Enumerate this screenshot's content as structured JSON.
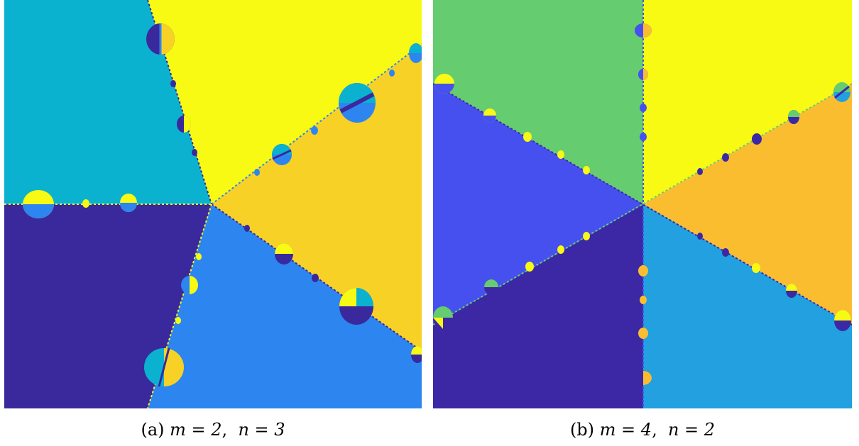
{
  "figure": {
    "panels": [
      {
        "tag": "(a)",
        "m_label": "m = 2",
        "n_label": "n = 3",
        "basin_colors": [
          "#0bb2cf",
          "#f8fa13",
          "#f8d127",
          "#2d85ef",
          "#3a299c"
        ]
      },
      {
        "tag": "(b)",
        "m_label": "m = 4",
        "n_label": "n = 2",
        "basin_colors": [
          "#66cc70",
          "#f8fa13",
          "#fbbd30",
          "#22a0e0",
          "#3c27a5",
          "#4650ee"
        ]
      }
    ]
  }
}
